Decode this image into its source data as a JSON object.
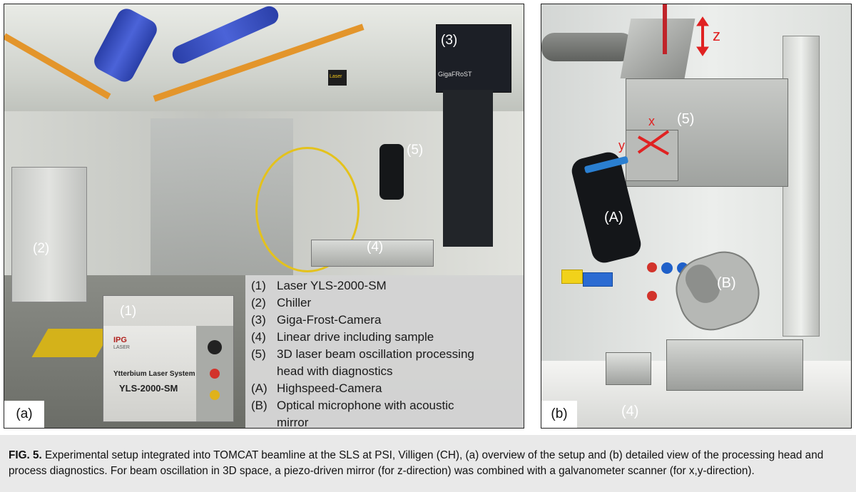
{
  "figure": {
    "label": "FIG. 5.",
    "caption": "Experimental setup integrated into TOMCAT beamline at the SLS at PSI, Villigen (CH), (a) overview of the setup and (b) detailed view of the processing head and process diagnostics. For beam oscillation in 3D space, a piezo-driven mirror (for z-direction) was combined with a galvanometer scanner (for x,y-direction)."
  },
  "panel_a": {
    "tag": "(a)",
    "callouts": {
      "laser": "(1)",
      "chiller": "(2)",
      "camera": "(3)",
      "linear_drive": "(4)",
      "head": "(5)"
    },
    "photo_text": {
      "brand": "IPG",
      "brand_sub": "LASER",
      "unit_name": "Ytterbium Laser System",
      "model": "YLS-2000-SM",
      "camera_brand": "GigaFRoST",
      "sign": "Laser"
    },
    "legend": [
      {
        "key": "(1)",
        "text": "Laser YLS-2000-SM"
      },
      {
        "key": "(2)",
        "text": "Chiller"
      },
      {
        "key": "(3)",
        "text": "Giga-Frost-Camera"
      },
      {
        "key": "(4)",
        "text": "Linear drive including sample"
      },
      {
        "key": "(5)",
        "text": "3D laser beam oscillation processing"
      },
      {
        "key": "",
        "text": "head with diagnostics"
      },
      {
        "key": "(A)",
        "text": "Highspeed-Camera"
      },
      {
        "key": "(B)",
        "text": "Optical microphone with acoustic"
      },
      {
        "key": "",
        "text": "mirror"
      }
    ]
  },
  "panel_b": {
    "tag": "(b)",
    "callouts": {
      "head": "(5)",
      "highspeed_camera": "(A)",
      "microphone": "(B)",
      "linear_drive": "(4)"
    },
    "axes": {
      "x": "x",
      "y": "y",
      "z": "z"
    },
    "accent_color": "#e02222"
  }
}
